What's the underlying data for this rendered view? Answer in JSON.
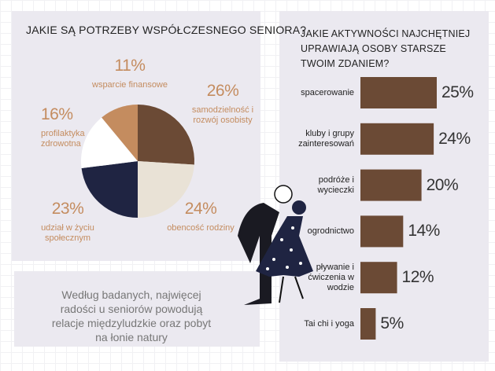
{
  "chart_data": [
    {
      "type": "pie",
      "title": "JAKIE SĄ POTRZEBY WSPÓŁCZESNEGO SENIORA?",
      "categories": [
        "samodzielność i rozwój osobisty",
        "obencość rodziny",
        "udział w życiu społecznym",
        "profilaktyka zdrowotna",
        "wsparcie finansowe"
      ],
      "values": [
        26,
        24,
        23,
        16,
        11
      ],
      "value_labels": [
        "26%",
        "24%",
        "23%",
        "16%",
        "11%"
      ],
      "colors": [
        "#6b4a35",
        "#e9e2d6",
        "#1f2442",
        "#ffffff",
        "#c48c5f"
      ]
    },
    {
      "type": "bar",
      "orientation": "horizontal",
      "title": "JAKIE AKTYWNOŚCI NAJCHĘTNIEJ UPRAWIAJĄ OSOBY STARSZE TWOIM ZDANIEM?",
      "categories": [
        "spacerowanie",
        "kluby i grupy zainteresowań",
        "podróże i wycieczki",
        "ogrodnictwo",
        "pływanie i ćwiczenia w wodzie",
        "Tai chi i yoga"
      ],
      "values": [
        25,
        24,
        20,
        14,
        12,
        5
      ],
      "value_labels": [
        "25%",
        "24%",
        "20%",
        "14%",
        "12%",
        "5%"
      ],
      "color": "#6b4a35"
    }
  ],
  "note": {
    "text": "Według badanych, najwięcej radości u seniorów powodują relacje międzyludzkie oraz pobyt na łonie natury"
  }
}
